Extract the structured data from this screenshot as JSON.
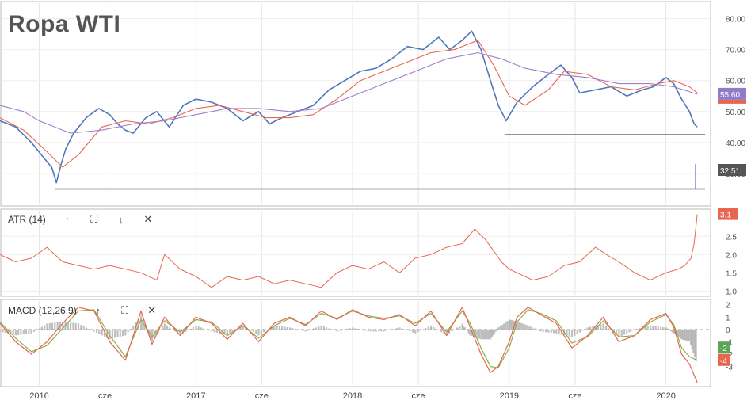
{
  "title": "Ropa WTI",
  "colors": {
    "price": "#4f77b9",
    "ma_fast": "#e8654f",
    "ma_slow": "#a07fc9",
    "atr": "#e8654f",
    "macd": "#e8654f",
    "signal": "#8cae4a",
    "hist": "#a9a9a9",
    "support": "#555555",
    "badge_ma_slow": "#8f7bc8",
    "badge_ma_fast": "#e8654f",
    "badge_price": "#555555",
    "badge_atr": "#e8654f",
    "badge_macd_signal": "#5aa55a",
    "badge_macd": "#e8654f"
  },
  "indicators": {
    "atr": {
      "label": "ATR (14)",
      "up": "↑",
      "expand": "⛶",
      "down": "↓",
      "close": "✕"
    },
    "macd": {
      "label": "MACD (12,26,9)",
      "up": "↑",
      "expand": "⛶",
      "close": "✕"
    }
  },
  "chart_data": [
    {
      "type": "line",
      "panel": "price",
      "title": "Ropa WTI",
      "ylim": [
        20,
        85
      ],
      "y_ticks": [
        "30.00",
        "40.00",
        "50.00",
        "60.00",
        "70.00",
        "80.00"
      ],
      "x_ticks": [
        "2016",
        "cze",
        "2017",
        "cze",
        "2018",
        "cze",
        "2019",
        "cze",
        "2020"
      ],
      "last_badges": {
        "ma_slow": "55.60",
        "ma_fast": "",
        "price": "32.51"
      },
      "series": [
        {
          "key": "price",
          "x": [
            2015.75,
            2015.85,
            2015.95,
            2016.03,
            2016.08,
            2016.11,
            2016.14,
            2016.17,
            2016.22,
            2016.3,
            2016.38,
            2016.45,
            2016.5,
            2016.55,
            2016.6,
            2016.68,
            2016.75,
            2016.83,
            2016.92,
            2017.0,
            2017.1,
            2017.2,
            2017.3,
            2017.4,
            2017.47,
            2017.55,
            2017.65,
            2017.75,
            2017.85,
            2017.95,
            2018.05,
            2018.15,
            2018.25,
            2018.35,
            2018.45,
            2018.55,
            2018.62,
            2018.7,
            2018.76,
            2018.82,
            2018.88,
            2018.93,
            2018.98,
            2019.05,
            2019.15,
            2019.25,
            2019.33,
            2019.4,
            2019.45,
            2019.55,
            2019.65,
            2019.75,
            2019.85,
            2019.92,
            2020.0,
            2020.05,
            2020.1,
            2020.15,
            2020.18,
            2020.2
          ],
          "values": [
            47,
            45,
            40,
            35,
            32,
            27,
            33,
            38,
            43,
            48,
            51,
            49,
            46,
            44,
            43,
            48,
            50,
            45,
            52,
            54,
            53,
            51,
            47,
            50,
            46,
            48,
            50,
            52,
            57,
            60,
            63,
            64,
            67,
            71,
            70,
            74,
            70,
            73,
            76,
            70,
            60,
            52,
            47,
            53,
            58,
            62,
            65,
            61,
            56,
            57,
            58,
            55,
            57,
            58,
            61,
            59,
            54,
            50,
            46,
            45
          ]
        },
        {
          "key": "ma_fast",
          "x": [
            2015.75,
            2015.9,
            2016.05,
            2016.15,
            2016.25,
            2016.4,
            2016.55,
            2016.7,
            2016.85,
            2017.0,
            2017.15,
            2017.3,
            2017.45,
            2017.6,
            2017.75,
            2017.9,
            2018.05,
            2018.2,
            2018.35,
            2018.5,
            2018.65,
            2018.8,
            2018.9,
            2019.0,
            2019.1,
            2019.25,
            2019.35,
            2019.5,
            2019.65,
            2019.8,
            2019.95,
            2020.05,
            2020.15,
            2020.2
          ],
          "values": [
            48,
            44,
            37,
            32,
            36,
            45,
            47,
            46,
            48,
            51,
            52,
            50,
            48,
            48,
            49,
            54,
            60,
            63,
            66,
            69,
            70,
            73,
            65,
            55,
            52,
            57,
            63,
            62,
            58,
            57,
            59,
            60,
            58,
            56
          ]
        },
        {
          "key": "ma_slow",
          "x": [
            2015.75,
            2015.9,
            2016.0,
            2016.2,
            2016.4,
            2016.6,
            2016.8,
            2017.0,
            2017.2,
            2017.4,
            2017.6,
            2017.8,
            2018.0,
            2018.2,
            2018.4,
            2018.6,
            2018.8,
            2018.95,
            2019.1,
            2019.3,
            2019.5,
            2019.7,
            2019.9,
            2020.05,
            2020.2
          ],
          "values": [
            52,
            50,
            47,
            43,
            44,
            46,
            47,
            49,
            51,
            51,
            50,
            51,
            55,
            59,
            63,
            67,
            69,
            67,
            64,
            62,
            61,
            59,
            59,
            58,
            55.6
          ]
        }
      ],
      "spike": {
        "x": 2020.19,
        "low": 25,
        "high": 33
      },
      "support_levels": [
        {
          "value": 25,
          "from": 2016.1,
          "to": 2020.25
        },
        {
          "value": 42.5,
          "from": 2018.97,
          "to": 2020.25
        }
      ]
    },
    {
      "type": "line",
      "panel": "atr",
      "ylim": [
        0.9,
        3.2
      ],
      "y_ticks": [
        "1.0",
        "1.5",
        "2.0",
        "2.5"
      ],
      "last_badge": "3.1",
      "series": [
        {
          "key": "atr",
          "x": [
            2015.75,
            2015.85,
            2015.95,
            2016.05,
            2016.1,
            2016.15,
            2016.25,
            2016.35,
            2016.45,
            2016.55,
            2016.65,
            2016.75,
            2016.8,
            2016.9,
            2017.0,
            2017.1,
            2017.2,
            2017.3,
            2017.4,
            2017.5,
            2017.6,
            2017.7,
            2017.8,
            2017.9,
            2018.0,
            2018.1,
            2018.2,
            2018.3,
            2018.4,
            2018.5,
            2018.6,
            2018.7,
            2018.78,
            2018.85,
            2018.9,
            2018.95,
            2019.0,
            2019.05,
            2019.15,
            2019.25,
            2019.35,
            2019.45,
            2019.5,
            2019.55,
            2019.62,
            2019.7,
            2019.8,
            2019.9,
            2020.0,
            2020.08,
            2020.12,
            2020.16,
            2020.18,
            2020.2
          ],
          "values": [
            2.0,
            1.8,
            1.9,
            2.2,
            2.0,
            1.8,
            1.7,
            1.6,
            1.7,
            1.6,
            1.5,
            1.3,
            2.0,
            1.6,
            1.4,
            1.1,
            1.4,
            1.3,
            1.4,
            1.2,
            1.3,
            1.2,
            1.1,
            1.5,
            1.7,
            1.6,
            1.8,
            1.5,
            1.9,
            2.0,
            2.2,
            2.3,
            2.7,
            2.4,
            2.1,
            1.8,
            1.6,
            1.5,
            1.3,
            1.4,
            1.7,
            1.8,
            2.0,
            2.2,
            2.0,
            1.8,
            1.5,
            1.3,
            1.5,
            1.6,
            1.7,
            1.9,
            2.3,
            3.1
          ]
        }
      ]
    },
    {
      "type": "line",
      "panel": "macd",
      "ylim": [
        -4.5,
        2.3
      ],
      "y_ticks": [
        "2",
        "1",
        "0",
        "-1",
        "-2",
        "-3"
      ],
      "last_badges": {
        "signal": "-2",
        "macd": "-4"
      },
      "series": [
        {
          "key": "macd",
          "x": [
            2015.75,
            2015.85,
            2015.95,
            2016.05,
            2016.15,
            2016.25,
            2016.35,
            2016.45,
            2016.55,
            2016.65,
            2016.72,
            2016.8,
            2016.9,
            2017.0,
            2017.1,
            2017.2,
            2017.3,
            2017.4,
            2017.5,
            2017.6,
            2017.7,
            2017.8,
            2017.9,
            2018.0,
            2018.1,
            2018.2,
            2018.3,
            2018.4,
            2018.5,
            2018.6,
            2018.7,
            2018.75,
            2018.82,
            2018.88,
            2018.93,
            2019.0,
            2019.05,
            2019.12,
            2019.2,
            2019.3,
            2019.4,
            2019.5,
            2019.6,
            2019.7,
            2019.8,
            2019.9,
            2020.0,
            2020.05,
            2020.1,
            2020.15,
            2020.2
          ],
          "values": [
            0.5,
            -1.0,
            -2.0,
            -1.0,
            0.5,
            1.8,
            1.5,
            -1.0,
            -2.5,
            1.5,
            -1.2,
            1.0,
            -0.5,
            1.0,
            0.5,
            -0.8,
            0.5,
            -1.0,
            0.5,
            1.0,
            0.3,
            1.5,
            0.8,
            1.6,
            1.0,
            0.8,
            1.2,
            0.3,
            1.5,
            -0.5,
            1.8,
            0.2,
            -2.0,
            -3.5,
            -3.0,
            -1.0,
            1.0,
            1.8,
            1.2,
            0.5,
            -1.5,
            -0.5,
            1.0,
            -1.0,
            -0.5,
            0.8,
            1.3,
            0.2,
            -2.0,
            -2.8,
            -4.3
          ]
        },
        {
          "key": "signal",
          "x": [
            2015.75,
            2015.85,
            2015.95,
            2016.05,
            2016.15,
            2016.25,
            2016.35,
            2016.45,
            2016.55,
            2016.65,
            2016.72,
            2016.8,
            2016.9,
            2017.0,
            2017.1,
            2017.2,
            2017.3,
            2017.4,
            2017.5,
            2017.6,
            2017.7,
            2017.8,
            2017.9,
            2018.0,
            2018.1,
            2018.2,
            2018.3,
            2018.4,
            2018.5,
            2018.6,
            2018.7,
            2018.75,
            2018.82,
            2018.88,
            2018.93,
            2019.0,
            2019.05,
            2019.12,
            2019.2,
            2019.3,
            2019.4,
            2019.5,
            2019.6,
            2019.7,
            2019.8,
            2019.9,
            2020.0,
            2020.05,
            2020.1,
            2020.15,
            2020.2
          ],
          "values": [
            0.6,
            -0.7,
            -1.8,
            -1.3,
            0.1,
            1.5,
            1.6,
            -0.5,
            -2.2,
            0.8,
            -0.6,
            0.7,
            -0.2,
            0.8,
            0.6,
            -0.5,
            0.3,
            -0.7,
            0.3,
            0.9,
            0.4,
            1.3,
            0.9,
            1.5,
            1.1,
            0.9,
            1.1,
            0.5,
            1.3,
            -0.2,
            1.5,
            0.5,
            -1.5,
            -3.0,
            -3.1,
            -1.5,
            0.6,
            1.6,
            1.3,
            0.7,
            -1.1,
            -0.6,
            0.7,
            -0.6,
            -0.5,
            0.6,
            1.2,
            0.4,
            -1.5,
            -2.2,
            -2.5
          ]
        }
      ]
    }
  ]
}
